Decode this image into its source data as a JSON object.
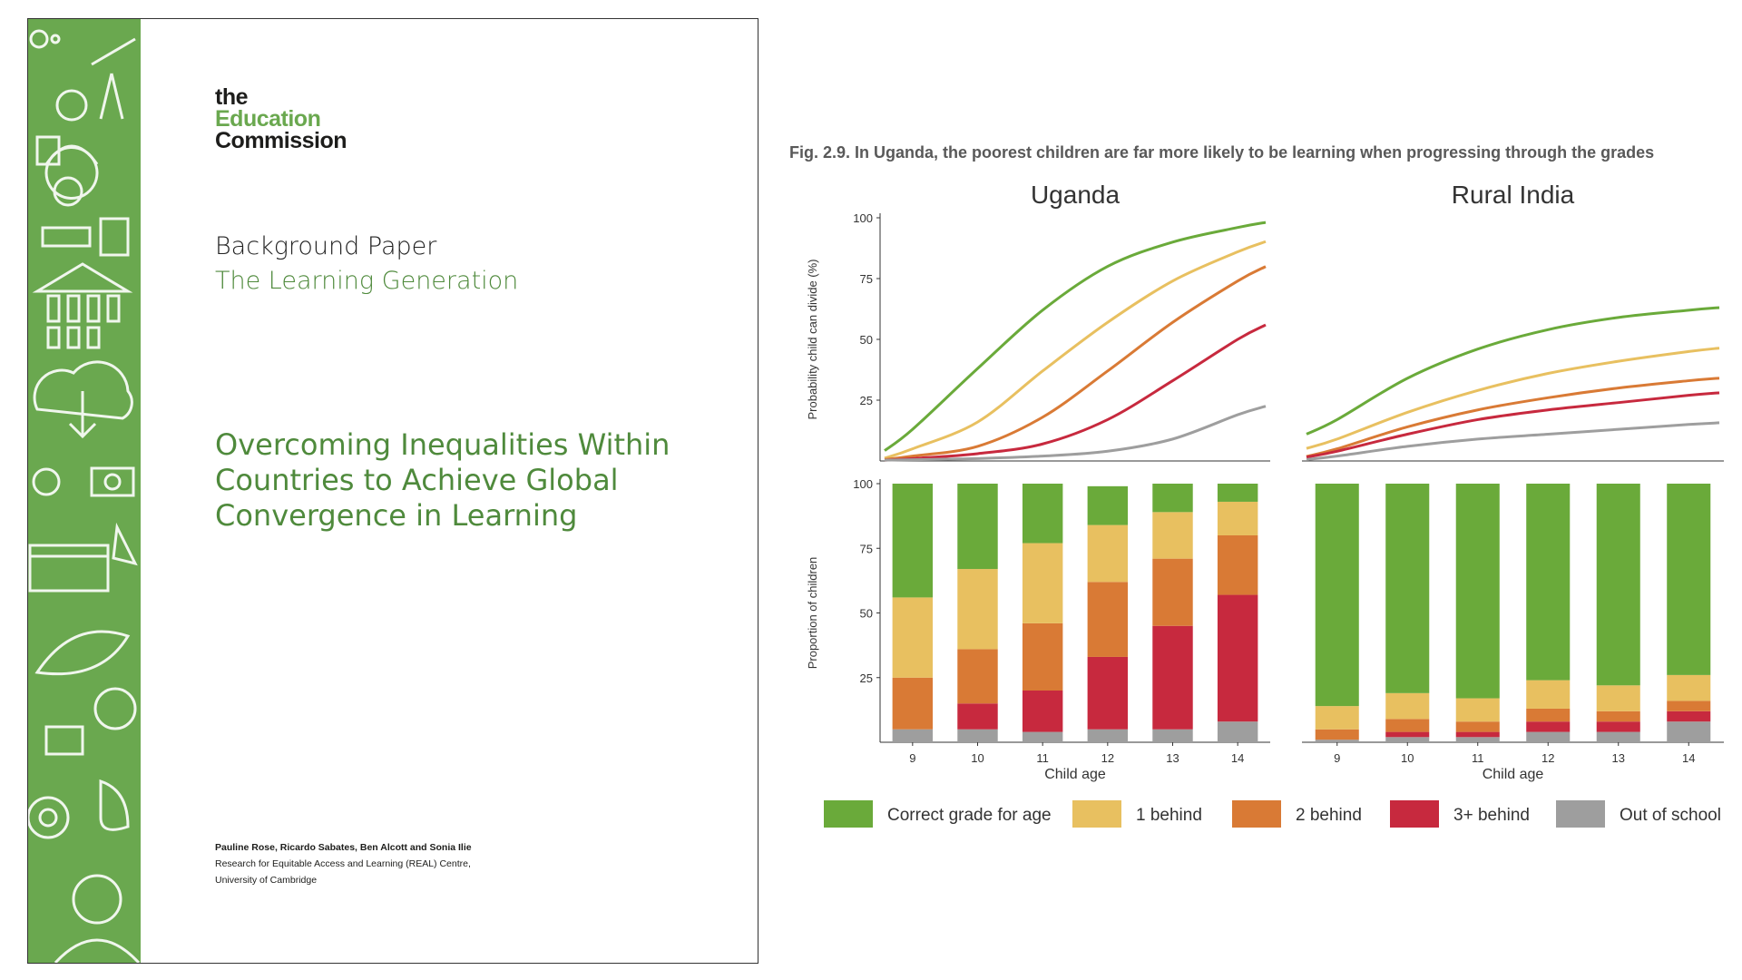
{
  "cover": {
    "logo": {
      "line1": "the",
      "line2": "Education",
      "line3": "Commission"
    },
    "series_label": "Background Paper",
    "series_name": "The Learning Generation",
    "title_lines": [
      "Overcoming Inequalities Within",
      "Countries to Achieve Global",
      "Convergence in Learning"
    ],
    "authors": "Pauline Rose, Ricardo Sabates, Ben Alcott and Sonia Ilie",
    "affiliation_line1": "Research for Equitable Access and Learning (REAL) Centre,",
    "affiliation_line2": "University of Cambridge",
    "accent_color": "#6aa84f"
  },
  "figure": {
    "caption": "Fig. 2.9. In Uganda, the poorest children are far more likely to be learning when progressing through the grades"
  },
  "chart_data": {
    "type": "line+stacked-bar",
    "panels": [
      "Uganda",
      "Rural India"
    ],
    "x": [
      9,
      10,
      11,
      12,
      13,
      14
    ],
    "xlabel": "Child age",
    "top_ylabel": "Probability child can divide (%)",
    "bottom_ylabel": "Proportion of children",
    "yticks": [
      25,
      50,
      75,
      100
    ],
    "ylim": [
      0,
      100
    ],
    "series": [
      {
        "name": "Correct grade for age",
        "color": "#6aaa3a"
      },
      {
        "name": "1 behind",
        "color": "#e8c060"
      },
      {
        "name": "2 behind",
        "color": "#d97a35"
      },
      {
        "name": "3+ behind",
        "color": "#c7293e"
      },
      {
        "name": "Out of school",
        "color": "#9e9e9e"
      }
    ],
    "lines": {
      "Uganda": {
        "Correct grade for age": [
          13,
          38,
          62,
          80,
          90,
          96
        ],
        "1 behind": [
          5,
          16,
          37,
          57,
          74,
          86
        ],
        "2 behind": [
          2,
          6,
          18,
          37,
          57,
          74
        ],
        "3+ behind": [
          1,
          3,
          7,
          17,
          33,
          50
        ],
        "Out of school": [
          0.5,
          1,
          2,
          4,
          9,
          19
        ]
      },
      "Rural India": {
        "Correct grade for age": [
          17,
          34,
          46,
          54,
          59,
          62
        ],
        "1 behind": [
          9,
          20,
          29,
          36,
          41,
          45
        ],
        "2 behind": [
          5,
          14,
          21,
          26,
          30,
          33
        ],
        "3+ behind": [
          4,
          11,
          17,
          21,
          24,
          27
        ],
        "Out of school": [
          2,
          6,
          9,
          11,
          13,
          15
        ]
      }
    },
    "bars": {
      "Uganda": {
        "Out of school": [
          5,
          5,
          4,
          5,
          5,
          8
        ],
        "3+ behind": [
          0,
          10,
          16,
          28,
          40,
          49
        ],
        "2 behind": [
          20,
          21,
          26,
          29,
          26,
          23
        ],
        "1 behind": [
          31,
          31,
          31,
          22,
          18,
          13
        ],
        "Correct grade for age": [
          44,
          33,
          23,
          15,
          11,
          7
        ]
      },
      "Rural India": {
        "Out of school": [
          1,
          2,
          2,
          4,
          4,
          8
        ],
        "3+ behind": [
          0,
          2,
          2,
          4,
          4,
          4
        ],
        "2 behind": [
          4,
          5,
          4,
          5,
          4,
          4
        ],
        "1 behind": [
          9,
          10,
          9,
          11,
          10,
          10
        ],
        "Correct grade for age": [
          86,
          81,
          83,
          76,
          78,
          74
        ]
      }
    }
  }
}
